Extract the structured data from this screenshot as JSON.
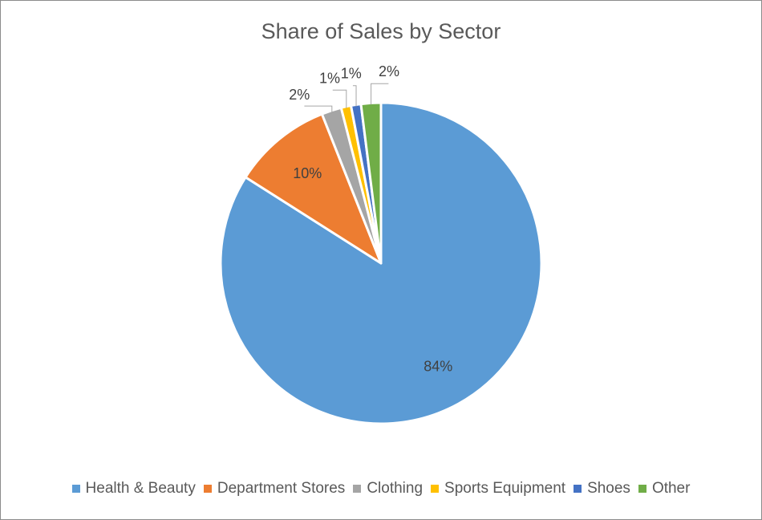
{
  "chart_data": {
    "type": "pie",
    "title": "Share of Sales by Sector",
    "categories": [
      "Health & Beauty",
      "Department Stores",
      "Clothing",
      "Sports Equipment",
      "Shoes",
      "Other"
    ],
    "values": [
      84,
      10,
      2,
      1,
      1,
      2
    ],
    "value_labels": [
      "84%",
      "10%",
      "2%",
      "1%",
      "1%",
      "2%"
    ],
    "colors": [
      "#5b9bd5",
      "#ed7d31",
      "#a5a5a5",
      "#ffc000",
      "#4472c4",
      "#70ad47"
    ],
    "legend_position": "bottom"
  }
}
